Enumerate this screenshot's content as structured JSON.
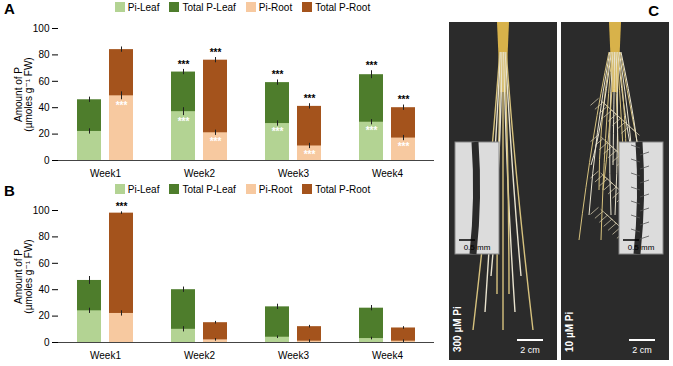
{
  "chart_data": [
    {
      "type": "bar",
      "title": "A",
      "categories": [
        "Week1",
        "Week2",
        "Week3",
        "Week4"
      ],
      "stacked": false,
      "ylabel": "Amount of P\n(µmoles g⁻¹ FW)",
      "ylim": [
        0,
        100
      ],
      "yticks": [
        0,
        20,
        40,
        60,
        80,
        100
      ],
      "legend": "top",
      "series": [
        {
          "name": "Pi-Leaf",
          "color": "#b3d393",
          "values": [
            22,
            37,
            28,
            29
          ],
          "errors": [
            2,
            3,
            2,
            2
          ],
          "annotations": [
            null,
            "***",
            "***",
            "***"
          ]
        },
        {
          "name": "Total P-Leaf",
          "color": "#4e7d2c",
          "values": [
            46,
            67,
            59,
            65
          ],
          "errors": [
            2,
            2,
            2,
            3
          ],
          "annotations": [
            null,
            "***",
            "***",
            "***"
          ]
        },
        {
          "name": "Pi-Root",
          "color": "#f7c9a0",
          "values": [
            49,
            21,
            11,
            17
          ],
          "errors": [
            3,
            2,
            2,
            2
          ],
          "annotations": [
            "***",
            "***",
            "***",
            "***"
          ]
        },
        {
          "name": "Total P-Root",
          "color": "#a4531c",
          "values": [
            84,
            76,
            41,
            40
          ],
          "errors": [
            2,
            2,
            2,
            2
          ],
          "annotations": [
            null,
            "***",
            "***",
            "***"
          ]
        }
      ]
    },
    {
      "type": "bar",
      "title": "B",
      "categories": [
        "Week1",
        "Week2",
        "Week3",
        "Week4"
      ],
      "stacked": false,
      "ylabel": "Amount of P\n(µmoles g⁻¹ FW)",
      "ylim": [
        0,
        100
      ],
      "yticks": [
        0,
        20,
        40,
        60,
        80,
        100
      ],
      "legend": "top",
      "series": [
        {
          "name": "Pi-Leaf",
          "color": "#b3d393",
          "values": [
            24,
            10,
            4,
            3
          ],
          "errors": [
            2,
            2,
            1,
            1
          ],
          "annotations": [
            null,
            null,
            null,
            null
          ]
        },
        {
          "name": "Total P-Leaf",
          "color": "#4e7d2c",
          "values": [
            47,
            40,
            27,
            26
          ],
          "errors": [
            3,
            2,
            2,
            2
          ],
          "annotations": [
            null,
            null,
            null,
            null
          ]
        },
        {
          "name": "Pi-Root",
          "color": "#f7c9a0",
          "values": [
            22,
            2,
            1,
            1
          ],
          "errors": [
            2,
            1,
            1,
            1
          ],
          "annotations": [
            null,
            null,
            null,
            null
          ]
        },
        {
          "name": "Total P-Root",
          "color": "#a4531c",
          "values": [
            98,
            15,
            12,
            11
          ],
          "errors": [
            1,
            1,
            1,
            1
          ],
          "annotations": [
            "***",
            null,
            null,
            null
          ]
        }
      ]
    }
  ],
  "panel_c": {
    "title": "C",
    "images": [
      {
        "treatment": "300 µM Pi",
        "scale_bar": "2 cm",
        "inset_scale_bar": "0.5 mm"
      },
      {
        "treatment": "10 µM Pi",
        "scale_bar": "2 cm",
        "inset_scale_bar": "0.5 mm"
      }
    ]
  }
}
